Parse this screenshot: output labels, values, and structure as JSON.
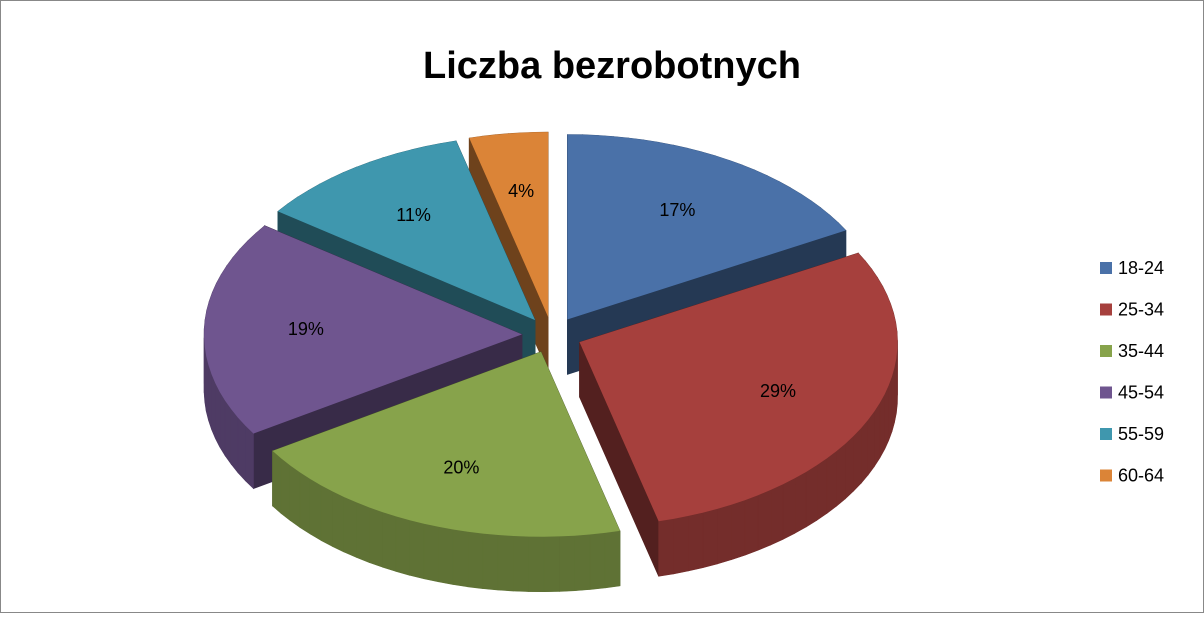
{
  "chart_data": {
    "type": "pie",
    "title": "Liczba bezrobotnych",
    "categories": [
      "18-24",
      "25-34",
      "35-44",
      "45-54",
      "55-59",
      "60-64"
    ],
    "values": [
      17,
      29,
      20,
      19,
      11,
      4
    ],
    "value_labels": [
      "17%",
      "29%",
      "20%",
      "19%",
      "11%",
      "4%"
    ],
    "colors": [
      "#4a71a8",
      "#a6403d",
      "#87a34b",
      "#6f558f",
      "#3f97ae",
      "#db8437"
    ],
    "legend": "right"
  }
}
